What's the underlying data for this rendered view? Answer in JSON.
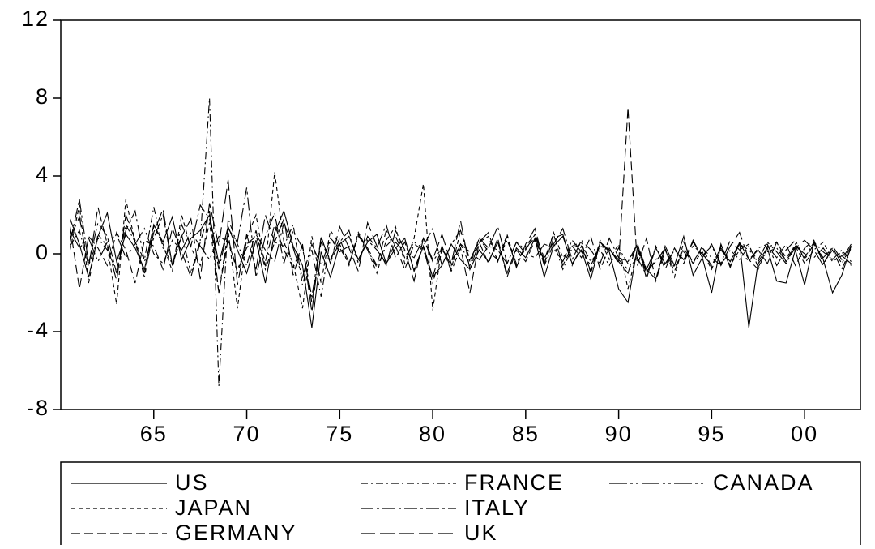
{
  "chart_data": {
    "type": "line",
    "x": [
      1960.5,
      1961,
      1961.5,
      1962,
      1962.5,
      1963,
      1963.5,
      1964,
      1964.5,
      1965,
      1965.5,
      1966,
      1966.5,
      1967,
      1967.5,
      1968,
      1968.5,
      1969,
      1969.5,
      1970,
      1970.5,
      1971,
      1971.5,
      1972,
      1972.5,
      1973,
      1973.5,
      1974,
      1974.5,
      1975,
      1975.5,
      1976,
      1976.5,
      1977,
      1977.5,
      1978,
      1978.5,
      1979,
      1979.5,
      1980,
      1980.5,
      1981,
      1981.5,
      1982,
      1982.5,
      1983,
      1983.5,
      1984,
      1984.5,
      1985,
      1985.5,
      1986,
      1986.5,
      1987,
      1987.5,
      1988,
      1988.5,
      1989,
      1989.5,
      1990,
      1990.5,
      1991,
      1991.5,
      1992,
      1992.5,
      1993,
      1993.5,
      1994,
      1994.5,
      1995,
      1995.5,
      1996,
      1996.5,
      1997,
      1997.5,
      1998,
      1998.5,
      1999,
      1999.5,
      2000,
      2000.5,
      2001,
      2001.5,
      2002,
      2002.5
    ],
    "xlim": [
      1960,
      2003
    ],
    "xticks": [
      {
        "value": 1965,
        "label": "65"
      },
      {
        "value": 1970,
        "label": "70"
      },
      {
        "value": 1975,
        "label": "75"
      },
      {
        "value": 1980,
        "label": "80"
      },
      {
        "value": 1985,
        "label": "85"
      },
      {
        "value": 1990,
        "label": "90"
      },
      {
        "value": 1995,
        "label": "95"
      },
      {
        "value": 2000,
        "label": "00"
      }
    ],
    "ylim": [
      -8,
      12
    ],
    "yticks": [
      -8,
      -4,
      0,
      4,
      8,
      12
    ],
    "legend": "bottom",
    "series": [
      {
        "name": "US",
        "color": "#000000",
        "dash": "none",
        "values": [
          1.8,
          0.5,
          -1.2,
          0.9,
          2.1,
          -0.4,
          1.0,
          0.3,
          -0.8,
          1.5,
          0.6,
          1.9,
          -0.3,
          0.8,
          1.2,
          2.0,
          -0.5,
          1.4,
          0.2,
          -1.0,
          0.7,
          -1.5,
          1.1,
          2.2,
          0.4,
          -0.6,
          -3.8,
          0.1,
          -1.2,
          0.5,
          0.9,
          -0.3,
          0.6,
          1.0,
          -0.5,
          0.3,
          0.8,
          -0.9,
          0.4,
          -1.2,
          -0.6,
          0.5,
          -0.3,
          -0.8,
          0.2,
          -0.4,
          0.6,
          -1.0,
          0.3,
          -0.2,
          0.8,
          -1.2,
          0.4,
          0.9,
          -0.5,
          0.2,
          -1.3,
          0.6,
          0.1,
          -1.8,
          -2.5,
          0.3,
          -0.8,
          -1.3,
          0.4,
          -0.6,
          0.9,
          -1.1,
          -0.2,
          -2.0,
          0.5,
          -0.7,
          0.6,
          -3.8,
          -0.4,
          0.3,
          -1.4,
          -1.5,
          0.2,
          -1.6,
          0.6,
          -0.3,
          -2.0,
          -1.1,
          0.4
        ]
      },
      {
        "name": "JAPAN",
        "color": "#000000",
        "dash": "5,4",
        "values": [
          0.2,
          2.5,
          -1.5,
          1.0,
          0.4,
          -2.6,
          2.8,
          0.6,
          -1.2,
          1.4,
          0.5,
          -0.9,
          2.0,
          0.3,
          -0.6,
          1.6,
          -2.0,
          1.2,
          -2.8,
          0.8,
          2.0,
          -0.7,
          4.2,
          0.6,
          -0.5,
          -2.8,
          0.9,
          -1.5,
          1.2,
          0.5,
          -0.6,
          1.1,
          0.2,
          -1.0,
          0.7,
          1.4,
          -0.5,
          0.8,
          3.6,
          -2.9,
          0.4,
          -0.8,
          1.2,
          -0.3,
          0.6,
          0.9,
          -0.4,
          1.0,
          -0.6,
          0.3,
          0.8,
          -0.5,
          1.1,
          -0.2,
          0.4,
          0.6,
          -1.0,
          0.7,
          -0.3,
          0.5,
          -1.8,
          0.2,
          -0.9,
          -0.4,
          0.3,
          -1.2,
          0.6,
          -0.5,
          0.1,
          -0.8,
          0.4,
          -0.6,
          0.2,
          0.5,
          -0.7,
          0.3,
          0.6,
          -0.2,
          0.4,
          -0.5,
          0.2,
          0.6,
          -0.3,
          0.1,
          -0.6
        ]
      },
      {
        "name": "GERMANY",
        "color": "#000000",
        "dash": "11,5",
        "values": [
          1.4,
          -1.8,
          0.9,
          0.3,
          -0.6,
          1.1,
          0.2,
          -1.5,
          0.7,
          0.4,
          -0.8,
          1.3,
          0.1,
          -1.2,
          0.6,
          2.2,
          -2.0,
          0.8,
          -1.0,
          0.5,
          0.9,
          -0.4,
          1.5,
          0.2,
          -0.7,
          0.4,
          -2.5,
          0.6,
          -0.3,
          0.8,
          -0.5,
          0.9,
          0.3,
          -0.6,
          1.2,
          0.4,
          -0.8,
          0.5,
          0.2,
          -1.2,
          0.4,
          -0.9,
          0.3,
          -2.0,
          0.6,
          -0.5,
          0.8,
          -1.2,
          0.2,
          -0.4,
          0.7,
          -0.3,
          1.0,
          -0.6,
          0.4,
          -0.2,
          0.9,
          -0.8,
          0.3,
          -0.5,
          7.5,
          -0.6,
          0.8,
          -1.4,
          0.2,
          -0.9,
          0.3,
          -0.5,
          0.4,
          -0.7,
          0.2,
          -0.4,
          0.6,
          -0.3,
          -0.8,
          0.4,
          -0.2,
          0.5,
          -0.6,
          0.3,
          0.7,
          -0.5,
          0.2,
          -0.8,
          0.3
        ]
      },
      {
        "name": "FRANCE",
        "color": "#000000",
        "dash": "9,4,2,4",
        "values": [
          0.4,
          1.2,
          -0.6,
          0.8,
          0.2,
          -0.9,
          1.5,
          0.6,
          -0.3,
          2.4,
          0.3,
          -0.5,
          1.0,
          -1.0,
          0.7,
          8.0,
          -6.8,
          1.8,
          0.5,
          -0.6,
          1.2,
          -0.8,
          0.6,
          0.4,
          1.5,
          -1.6,
          0.2,
          -2.2,
          0.8,
          0.3,
          -0.5,
          1.0,
          0.2,
          -0.7,
          0.4,
          0.9,
          -0.2,
          0.6,
          0.3,
          -1.5,
          0.2,
          -0.4,
          0.5,
          -0.6,
          0.8,
          0.1,
          -0.3,
          0.7,
          -0.5,
          0.4,
          1.0,
          -0.2,
          0.6,
          -0.8,
          0.3,
          0.5,
          -0.4,
          0.2,
          -0.6,
          0.3,
          -0.5,
          0.4,
          -1.0,
          -0.3,
          0.2,
          -0.7,
          0.1,
          -0.4,
          0.3,
          -0.2,
          -0.6,
          0.2,
          -0.3,
          0.4,
          -0.5,
          0.1,
          0.3,
          -0.4,
          0.5,
          -0.2,
          0.6,
          0.1,
          -0.3,
          0.2,
          -0.4
        ]
      },
      {
        "name": "ITALY",
        "color": "#000000",
        "dash": "16,4,3,4",
        "values": [
          0.6,
          2.8,
          -0.5,
          1.6,
          0.9,
          -1.0,
          1.2,
          2.2,
          -0.4,
          0.8,
          2.0,
          -0.6,
          1.5,
          0.4,
          2.5,
          1.8,
          -0.8,
          1.3,
          0.6,
          3.4,
          -1.2,
          0.9,
          2.1,
          -0.5,
          1.2,
          0.3,
          -2.2,
          0.8,
          -0.4,
          0.6,
          1.2,
          -0.5,
          0.9,
          0.3,
          1.5,
          -0.2,
          0.6,
          -0.8,
          0.4,
          1.3,
          -0.6,
          0.5,
          1.2,
          -0.4,
          0.8,
          0.3,
          1.4,
          -0.5,
          0.6,
          0.2,
          1.0,
          -0.6,
          0.5,
          1.3,
          -0.3,
          0.7,
          0.2,
          -0.5,
          0.8,
          -0.2,
          -0.4,
          0.5,
          -0.8,
          0.3,
          -0.6,
          0.2,
          -0.3,
          0.6,
          -0.1,
          0.4,
          -0.5,
          0.7,
          0.2,
          -0.4,
          0.3,
          0.5,
          -0.6,
          0.2,
          0.7,
          -0.3,
          0.5,
          -0.2,
          0.3,
          -0.5,
          0.4
        ]
      },
      {
        "name": "UK",
        "color": "#000000",
        "dash": "18,6",
        "values": [
          0.8,
          1.9,
          -0.7,
          2.4,
          0.5,
          -1.4,
          2.0,
          0.7,
          -1.0,
          1.1,
          2.3,
          -0.6,
          0.9,
          1.8,
          -1.3,
          2.6,
          0.4,
          3.8,
          -1.6,
          1.0,
          -0.8,
          2.0,
          0.6,
          1.8,
          -1.1,
          0.5,
          -3.0,
          0.9,
          -0.5,
          1.4,
          0.3,
          -0.9,
          1.6,
          0.4,
          -0.6,
          1.2,
          0.2,
          -1.4,
          0.8,
          -0.3,
          1.0,
          -0.5,
          1.7,
          -0.8,
          0.6,
          1.1,
          -0.4,
          0.9,
          -0.7,
          0.5,
          1.3,
          -0.5,
          0.8,
          1.0,
          -0.6,
          0.4,
          -0.9,
          0.6,
          0.2,
          -0.4,
          -1.0,
          0.6,
          -1.3,
          0.4,
          -0.8,
          0.3,
          -0.5,
          0.7,
          -0.2,
          0.5,
          -0.6,
          0.4,
          1.1,
          -0.3,
          0.2,
          -0.5,
          0.6,
          -0.4,
          0.3,
          0.7,
          0.2,
          -0.6,
          0.4,
          -0.3,
          0.5
        ]
      },
      {
        "name": "CANADA",
        "color": "#000000",
        "dash": "22,4,3,4,3,4",
        "values": [
          1.2,
          0.3,
          0.8,
          -0.4,
          0.6,
          1.0,
          -0.2,
          0.5,
          1.3,
          0.0,
          -0.5,
          0.7,
          0.2,
          1.1,
          0.4,
          -0.3,
          0.9,
          0.6,
          -0.8,
          0.3,
          1.0,
          0.2,
          -0.4,
          1.6,
          0.3,
          -1.2,
          0.5,
          -0.6,
          0.8,
          0.1,
          0.4,
          -0.3,
          0.7,
          0.2,
          -0.5,
          0.6,
          0.1,
          -0.2,
          0.8,
          -0.4,
          0.3,
          -0.6,
          0.5,
          0.1,
          -0.3,
          0.4,
          0.2,
          -0.5,
          0.6,
          0.0,
          -0.2,
          0.5,
          0.3,
          -0.4,
          0.7,
          0.1,
          -0.6,
          0.4,
          0.2,
          -0.3,
          -0.8,
          -0.2,
          -1.1,
          0.3,
          -0.5,
          0.2,
          -0.3,
          0.4,
          0.0,
          -0.6,
          0.3,
          -0.4,
          0.5,
          0.2,
          -0.3,
          0.6,
          0.1,
          -0.5,
          0.4,
          0.0,
          -0.2,
          0.3,
          -0.4,
          -0.1,
          -0.5
        ]
      }
    ]
  }
}
